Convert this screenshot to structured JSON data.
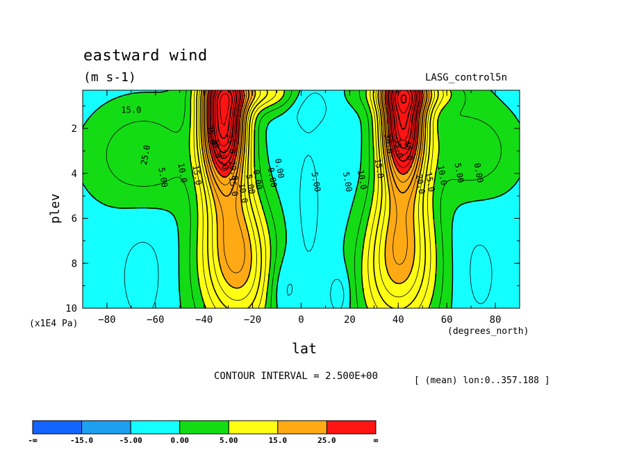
{
  "chart_data": {
    "type": "contour",
    "title": "eastward wind",
    "units": "(m s-1)",
    "dataset": "LASG_control5n",
    "xlabel": "lat",
    "xunits": "(degrees_north)",
    "ylabel": "plev",
    "yunits": "(x1E4 Pa)",
    "xlim": [
      -90,
      90
    ],
    "ylim": [
      10,
      0.3
    ],
    "x_ticks": [
      -80,
      -60,
      -40,
      -20,
      0,
      20,
      40,
      60,
      80
    ],
    "y_ticks": [
      2,
      4,
      6,
      8,
      10
    ],
    "contour_interval_text": "CONTOUR INTERVAL = 2.500E+00",
    "contour_interval": 2.5,
    "mean_note": "[ (mean) lon:0..357.188 ]",
    "jets": [
      {
        "name_hint": "SH jet",
        "lat": -32,
        "plev": 1.6,
        "peak": 42
      },
      {
        "name_hint": "NH jet",
        "lat": 42,
        "plev": 1.6,
        "peak": 40
      }
    ],
    "contour_labels": [
      "25.0",
      "15.0",
      "35.0",
      "30.0",
      "25.0",
      "20.0",
      "15.0",
      "10.0",
      "5.00",
      "0.00",
      "0.00",
      "5.00",
      "10.0",
      "15.0",
      "20.0",
      "5.00",
      "0.00",
      "5.00",
      "10.0",
      "15.0",
      "30.0",
      "35.0",
      "40.0",
      "20.0",
      "15.0",
      "10.0",
      "5.00",
      "0.00"
    ],
    "colorbar": {
      "labels": [
        "-∞",
        "-15.0",
        "-5.00",
        "0.00",
        "5.00",
        "15.0",
        "25.0",
        "∞"
      ],
      "colors": [
        "#1464ff",
        "#1ea0f0",
        "#14ffff",
        "#14dc14",
        "#ffff14",
        "#ffaa14",
        "#ff1414"
      ]
    },
    "colors": {
      "neg_strong": "#1464ff",
      "neg": "#1ea0f0",
      "weak_neg": "#14ffff",
      "weak_pos": "#14dc14",
      "pos": "#ffff14",
      "strong": "#ffaa14",
      "jet": "#ff1414"
    }
  }
}
